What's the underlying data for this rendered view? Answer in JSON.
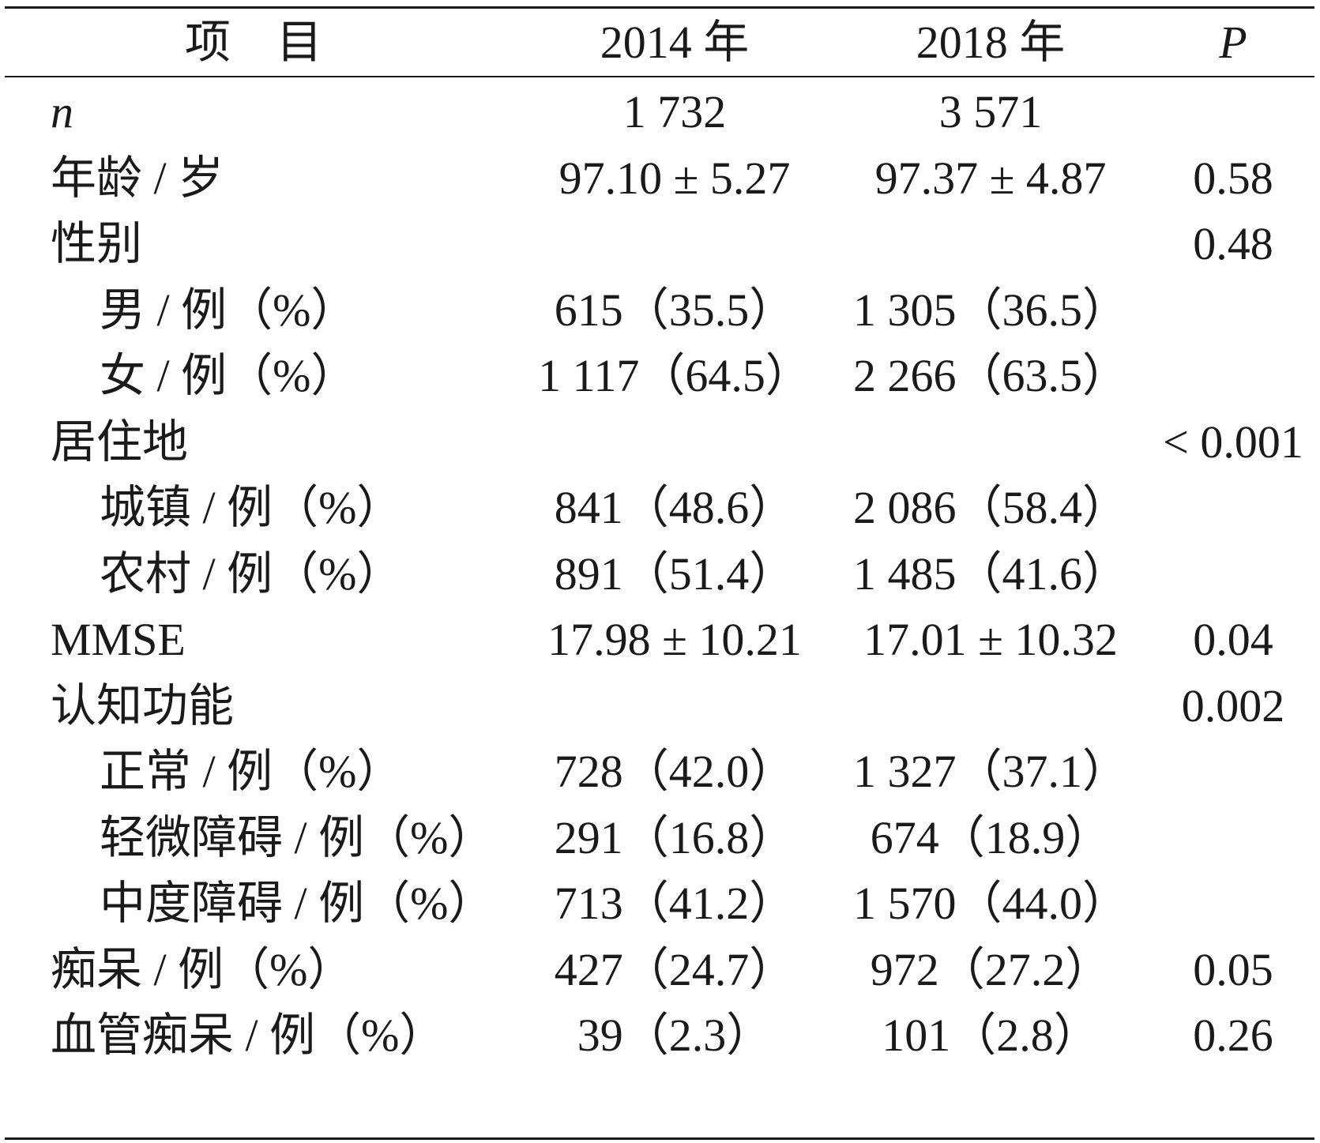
{
  "header": {
    "item": "项目",
    "col_2014": "2014 年",
    "col_2018": "2018 年",
    "col_p": "P"
  },
  "rows": [
    {
      "label": "n",
      "indent": false,
      "italic": true,
      "v2014": "1 732",
      "v2018": "3 571",
      "p": ""
    },
    {
      "label": "年龄 / 岁",
      "indent": false,
      "italic": false,
      "v2014": "97.10 ± 5.27",
      "v2018": "97.37 ± 4.87",
      "p": "0.58"
    },
    {
      "label": "性别",
      "indent": false,
      "italic": false,
      "v2014": "",
      "v2018": "",
      "p": "0.48"
    },
    {
      "label": "男 / 例（%）",
      "indent": true,
      "italic": false,
      "v2014": "615（35.5）",
      "v2018": "1 305（36.5）",
      "p": ""
    },
    {
      "label": "女 / 例（%）",
      "indent": true,
      "italic": false,
      "v2014": "1 117（64.5）",
      "v2018": "2 266（63.5）",
      "p": ""
    },
    {
      "label": "居住地",
      "indent": false,
      "italic": false,
      "v2014": "",
      "v2018": "",
      "p": "< 0.001"
    },
    {
      "label": "城镇 / 例（%）",
      "indent": true,
      "italic": false,
      "v2014": "841（48.6）",
      "v2018": "2 086（58.4）",
      "p": ""
    },
    {
      "label": "农村 / 例（%）",
      "indent": true,
      "italic": false,
      "v2014": "891（51.4）",
      "v2018": "1 485（41.6）",
      "p": ""
    },
    {
      "label": "MMSE",
      "indent": false,
      "italic": false,
      "v2014": "17.98 ± 10.21",
      "v2018": "17.01 ± 10.32",
      "p": "0.04"
    },
    {
      "label": "认知功能",
      "indent": false,
      "italic": false,
      "v2014": "",
      "v2018": "",
      "p": "0.002"
    },
    {
      "label": "正常 / 例（%）",
      "indent": true,
      "italic": false,
      "v2014": "728（42.0）",
      "v2018": "1 327（37.1）",
      "p": ""
    },
    {
      "label": "轻微障碍 / 例（%）",
      "indent": true,
      "italic": false,
      "v2014": "291（16.8）",
      "v2018": "674（18.9）",
      "p": ""
    },
    {
      "label": "中度障碍 / 例（%）",
      "indent": true,
      "italic": false,
      "v2014": "713（41.2）",
      "v2018": "1 570（44.0）",
      "p": ""
    },
    {
      "label": "痴呆 / 例（%）",
      "indent": false,
      "italic": false,
      "v2014": "427（24.7）",
      "v2018": "972（27.2）",
      "p": "0.05"
    },
    {
      "label": "血管痴呆 / 例（%）",
      "indent": false,
      "italic": false,
      "v2014": "39（2.3）",
      "v2018": "101（2.8）",
      "p": "0.26"
    }
  ]
}
